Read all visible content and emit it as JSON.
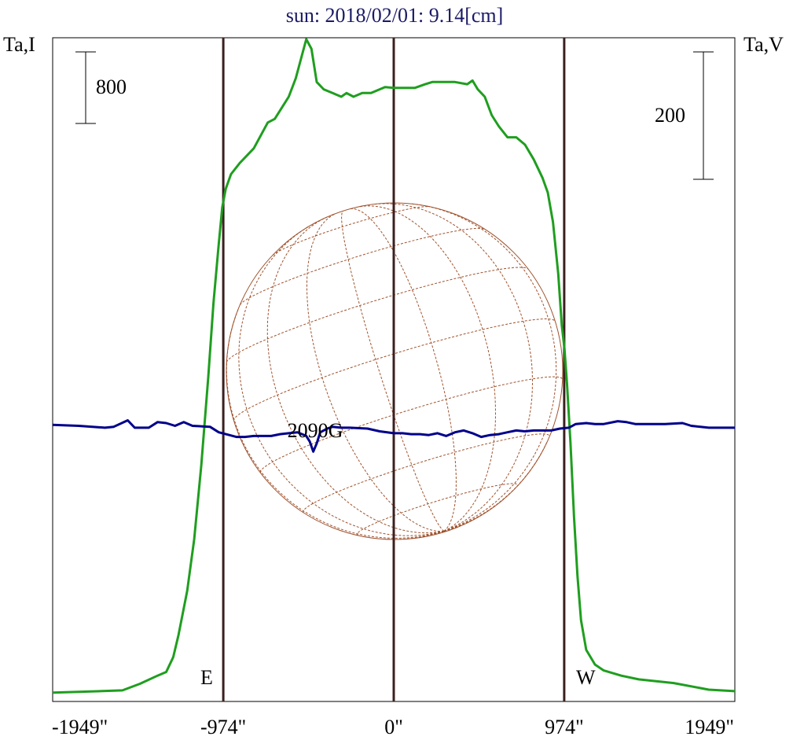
{
  "chart_data": {
    "type": "line",
    "title": "sun: 2018/02/01: 9.14[cm]",
    "ylabel_left": "Ta,I",
    "ylabel_right": "Ta,V",
    "scale_left_label": "800",
    "scale_right_label": "200",
    "scale_left_value": 800,
    "scale_right_value": 200,
    "xlim": [
      -1949,
      1949
    ],
    "x_tick_labels": [
      "-1949\"",
      "-974\"",
      "0\"",
      "974\"",
      "1949\""
    ],
    "x_ticks": [
      -1949,
      -974,
      0,
      974,
      1949
    ],
    "vertical_lines": [
      -974,
      0,
      974
    ],
    "annotations": {
      "east": "E",
      "west": "W",
      "source": "2090G",
      "source_x": -460
    },
    "colors": {
      "intensity": "#1f9e1f",
      "polarization": "#00008b",
      "limb_lines": "#3b2020",
      "grid": "#a0522d",
      "title": "#1a1a66"
    },
    "series": [
      {
        "key": "I",
        "ylim": [
          0,
          9000
        ],
        "points": [
          [
            -1949,
            120
          ],
          [
            -1800,
            130
          ],
          [
            -1550,
            150
          ],
          [
            -1450,
            240
          ],
          [
            -1350,
            350
          ],
          [
            -1300,
            400
          ],
          [
            -1260,
            600
          ],
          [
            -1230,
            900
          ],
          [
            -1180,
            1500
          ],
          [
            -1140,
            2200
          ],
          [
            -1100,
            3200
          ],
          [
            -1060,
            4400
          ],
          [
            -1030,
            5400
          ],
          [
            -1000,
            6200
          ],
          [
            -980,
            6700
          ],
          [
            -960,
            6950
          ],
          [
            -930,
            7150
          ],
          [
            -880,
            7300
          ],
          [
            -800,
            7500
          ],
          [
            -720,
            7850
          ],
          [
            -680,
            7900
          ],
          [
            -600,
            8200
          ],
          [
            -560,
            8450
          ],
          [
            -500,
            8980
          ],
          [
            -470,
            8850
          ],
          [
            -440,
            8400
          ],
          [
            -400,
            8300
          ],
          [
            -350,
            8250
          ],
          [
            -300,
            8200
          ],
          [
            -270,
            8250
          ],
          [
            -230,
            8200
          ],
          [
            -180,
            8250
          ],
          [
            -130,
            8250
          ],
          [
            -50,
            8330
          ],
          [
            0,
            8320
          ],
          [
            50,
            8320
          ],
          [
            120,
            8320
          ],
          [
            180,
            8370
          ],
          [
            220,
            8400
          ],
          [
            260,
            8400
          ],
          [
            350,
            8400
          ],
          [
            420,
            8370
          ],
          [
            450,
            8420
          ],
          [
            480,
            8300
          ],
          [
            520,
            8200
          ],
          [
            560,
            7950
          ],
          [
            600,
            7800
          ],
          [
            650,
            7650
          ],
          [
            700,
            7650
          ],
          [
            750,
            7550
          ],
          [
            800,
            7350
          ],
          [
            850,
            7100
          ],
          [
            880,
            6900
          ],
          [
            910,
            6500
          ],
          [
            940,
            5800
          ],
          [
            960,
            5100
          ],
          [
            975,
            4800
          ],
          [
            990,
            4300
          ],
          [
            1010,
            3500
          ],
          [
            1030,
            2500
          ],
          [
            1050,
            1700
          ],
          [
            1070,
            1100
          ],
          [
            1100,
            700
          ],
          [
            1150,
            500
          ],
          [
            1200,
            420
          ],
          [
            1300,
            350
          ],
          [
            1400,
            300
          ],
          [
            1600,
            250
          ],
          [
            1800,
            160
          ],
          [
            1949,
            140
          ]
        ]
      },
      {
        "key": "V",
        "ylim": [
          -1500,
          2100
        ],
        "points": [
          [
            -1949,
            0
          ],
          [
            -1800,
            -5
          ],
          [
            -1650,
            -15
          ],
          [
            -1600,
            -10
          ],
          [
            -1520,
            25
          ],
          [
            -1480,
            -15
          ],
          [
            -1400,
            -15
          ],
          [
            -1350,
            15
          ],
          [
            -1300,
            10
          ],
          [
            -1250,
            -5
          ],
          [
            -1200,
            15
          ],
          [
            -1150,
            -5
          ],
          [
            -1050,
            -10
          ],
          [
            -1000,
            -40
          ],
          [
            -940,
            -55
          ],
          [
            -900,
            -65
          ],
          [
            -850,
            -65
          ],
          [
            -800,
            -60
          ],
          [
            -750,
            -60
          ],
          [
            -700,
            -60
          ],
          [
            -650,
            -50
          ],
          [
            -600,
            -45
          ],
          [
            -550,
            -40
          ],
          [
            -500,
            -60
          ],
          [
            -480,
            -90
          ],
          [
            -460,
            -145
          ],
          [
            -440,
            -100
          ],
          [
            -420,
            -40
          ],
          [
            -380,
            -20
          ],
          [
            -350,
            -10
          ],
          [
            -300,
            -15
          ],
          [
            -250,
            -15
          ],
          [
            -150,
            -20
          ],
          [
            -80,
            -35
          ],
          [
            0,
            -45
          ],
          [
            50,
            -45
          ],
          [
            100,
            -50
          ],
          [
            150,
            -50
          ],
          [
            200,
            -55
          ],
          [
            250,
            -45
          ],
          [
            300,
            -60
          ],
          [
            350,
            -40
          ],
          [
            400,
            -30
          ],
          [
            450,
            -45
          ],
          [
            500,
            -65
          ],
          [
            550,
            -55
          ],
          [
            600,
            -50
          ],
          [
            650,
            -40
          ],
          [
            700,
            -30
          ],
          [
            750,
            -35
          ],
          [
            800,
            -30
          ],
          [
            850,
            -30
          ],
          [
            900,
            -30
          ],
          [
            950,
            -20
          ],
          [
            1000,
            -15
          ],
          [
            1040,
            5
          ],
          [
            1100,
            10
          ],
          [
            1150,
            5
          ],
          [
            1200,
            5
          ],
          [
            1280,
            20
          ],
          [
            1330,
            15
          ],
          [
            1380,
            5
          ],
          [
            1450,
            5
          ],
          [
            1550,
            5
          ],
          [
            1650,
            10
          ],
          [
            1700,
            -5
          ],
          [
            1800,
            -15
          ],
          [
            1949,
            -15
          ]
        ]
      }
    ]
  }
}
